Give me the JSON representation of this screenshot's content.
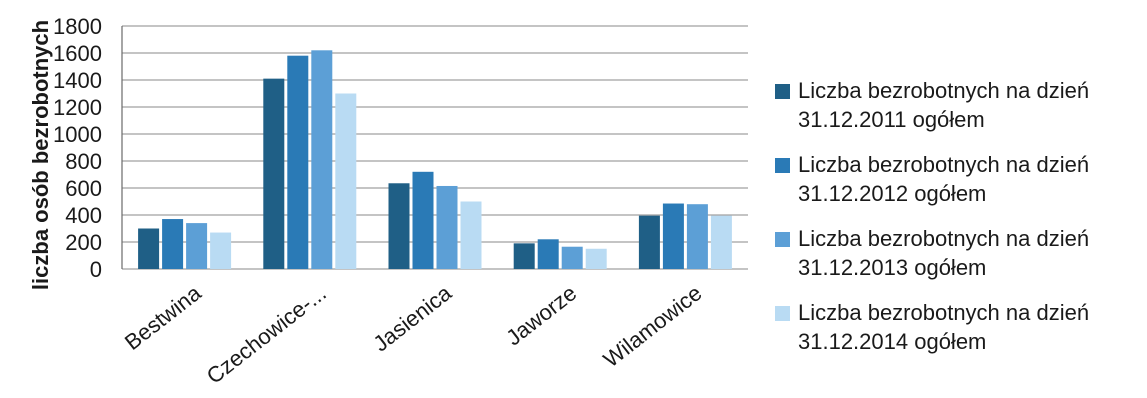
{
  "chart_data": {
    "type": "bar",
    "title": "",
    "xlabel": "",
    "ylabel": "liczba osób bezrobotnych",
    "ylim": [
      0,
      1800
    ],
    "yticks": [
      0,
      200,
      400,
      600,
      800,
      1000,
      1200,
      1400,
      1600,
      1800
    ],
    "grid": true,
    "legend_position": "right",
    "categories": [
      "Bestwina",
      "Czechowice-...",
      "Jasienica",
      "Jaworze",
      "Wilamowice"
    ],
    "series": [
      {
        "name": "Liczba bezrobotnych na dzień 31.12.2011 ogółem",
        "color": "#1f5f86",
        "values": [
          300,
          1410,
          635,
          190,
          395
        ]
      },
      {
        "name": "Liczba bezrobotnych na dzień 31.12.2012 ogółem",
        "color": "#2a7ab6",
        "values": [
          370,
          1580,
          720,
          220,
          485
        ]
      },
      {
        "name": "Liczba bezrobotnych na dzień 31.12.2013 ogółem",
        "color": "#5c9fd6",
        "values": [
          340,
          1620,
          615,
          165,
          480
        ]
      },
      {
        "name": "Liczba bezrobotnych na dzień 31.12.2014 ogółem",
        "color": "#b9dbf3",
        "values": [
          270,
          1300,
          500,
          150,
          395
        ]
      }
    ]
  },
  "legend": [
    {
      "line1": "Liczba bezrobotnych na dzień",
      "line2": "31.12.2011 ogółem"
    },
    {
      "line1": "Liczba bezrobotnych na dzień",
      "line2": "31.12.2012 ogółem"
    },
    {
      "line1": "Liczba bezrobotnych na dzień",
      "line2": "31.12.2013 ogółem"
    },
    {
      "line1": "Liczba bezrobotnych na dzień",
      "line2": "31.12.2014 ogółem"
    }
  ]
}
